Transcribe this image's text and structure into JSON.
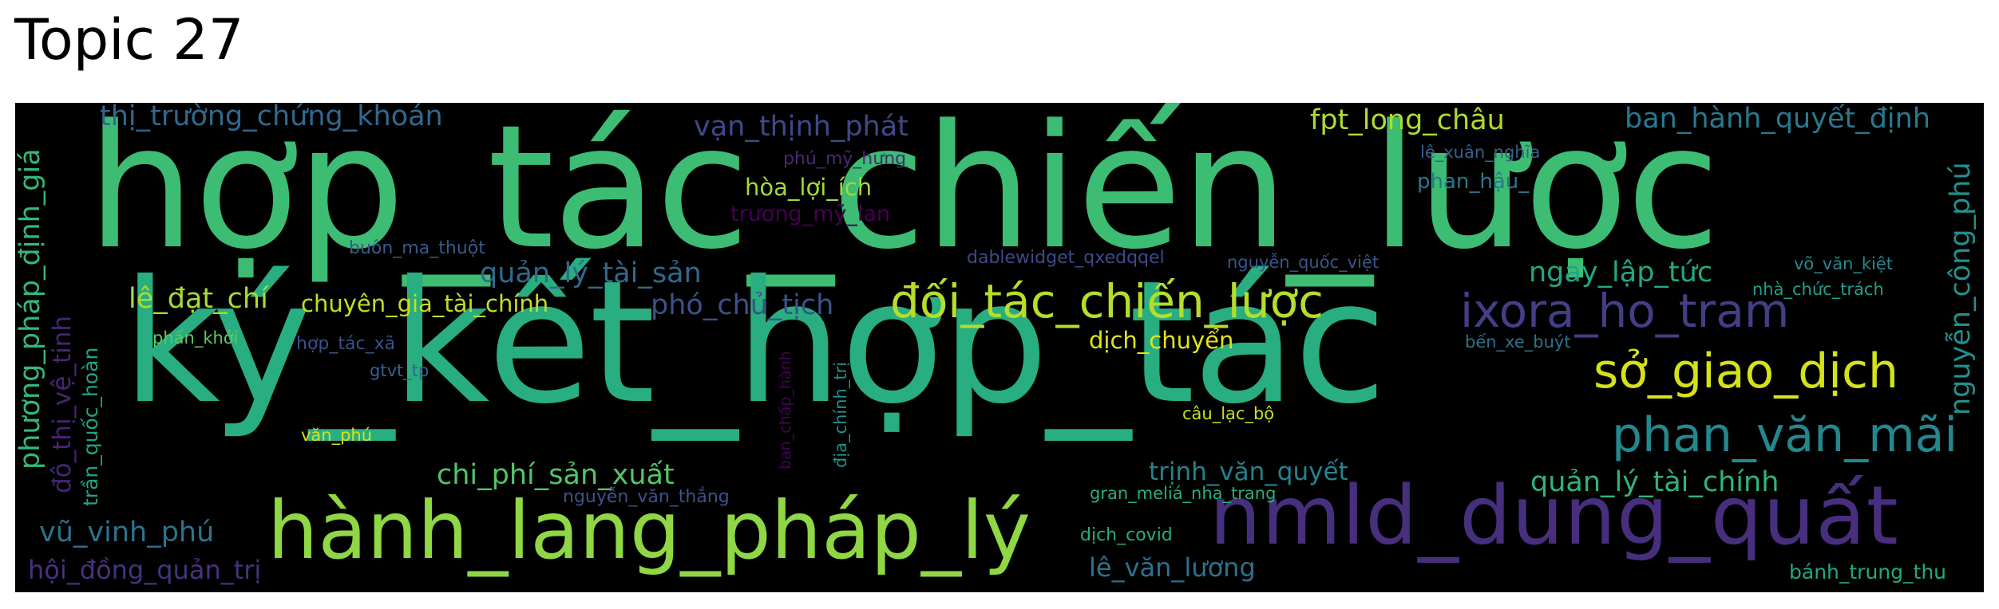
{
  "title": "Topic 27",
  "colors": {
    "background": "#000000",
    "page": "#ffffff",
    "title_text": "#000000"
  },
  "words": [
    {
      "text": "hợp_tác_chiến_lược",
      "color": "#3dbc73"
    },
    {
      "text": "ký_kết_hợp_tác",
      "color": "#28ae80"
    },
    {
      "text": "hành_lang_pháp_lý",
      "color": "#8fd744"
    },
    {
      "text": "nmld_dung_quất",
      "color": "#472f7d"
    },
    {
      "text": "đối_tác_chiến_lược",
      "color": "#b5de2b"
    },
    {
      "text": "ixora_ho_tram",
      "color": "#433e85"
    },
    {
      "text": "sở_giao_dịch",
      "color": "#d5e21a"
    },
    {
      "text": "phan_văn_mãi",
      "color": "#23888e"
    },
    {
      "text": "thị_trường_chứng_khoán",
      "color": "#31688e"
    },
    {
      "text": "vạn_thịnh_phát",
      "color": "#3e4989"
    },
    {
      "text": "fpt_long_châu",
      "color": "#addc30"
    },
    {
      "text": "ban_hành_quyết_định",
      "color": "#2a788e"
    },
    {
      "text": "phương_pháp_định_giá",
      "color": "#35b779"
    },
    {
      "text": "nguyễn_công_phú",
      "color": "#21918c"
    },
    {
      "text": "quản_lý_tài_sản",
      "color": "#31688e"
    },
    {
      "text": "lê_đạt_chí",
      "color": "#a8db34"
    },
    {
      "text": "chuyên_gia_tài_chính",
      "color": "#c2df23"
    },
    {
      "text": "phó_chủ_tịch",
      "color": "#3b528b"
    },
    {
      "text": "ngay_lập_tức",
      "color": "#22a785"
    },
    {
      "text": "chi_phí_sản_xuất",
      "color": "#52c569"
    },
    {
      "text": "vũ_vinh_phú",
      "color": "#2c728e"
    },
    {
      "text": "hội_đồng_quản_trị",
      "color": "#46327e"
    },
    {
      "text": "trịnh_văn_quyết",
      "color": "#26828e"
    },
    {
      "text": "quản_lý_tài_chính",
      "color": "#2fb47c"
    },
    {
      "text": "lê_văn_lương",
      "color": "#2d708e"
    },
    {
      "text": "đô_thị_vệ_tinh",
      "color": "#482475"
    },
    {
      "text": "trần_quốc_hoàn",
      "color": "#20a486"
    },
    {
      "text": "hòa_lợi_ích",
      "color": "#a2da37"
    },
    {
      "text": "trương_mỹ_lan",
      "color": "#440154"
    },
    {
      "text": "phú_mỹ_hưng",
      "color": "#482878"
    },
    {
      "text": "buôn_ma_thuột",
      "color": "#38598c"
    },
    {
      "text": "dablewidget_qxedqqel",
      "color": "#3e4a89"
    },
    {
      "text": "nguyễn_quốc_việt",
      "color": "#39558c"
    },
    {
      "text": "lê_xuân_nghĩa",
      "color": "#33638d"
    },
    {
      "text": "phan_hậu_",
      "color": "#2a778e"
    },
    {
      "text": "võ_văn_kiệt",
      "color": "#23898e"
    },
    {
      "text": "nhà_chức_trách",
      "color": "#1fa088"
    },
    {
      "text": "dịch_chuyển",
      "color": "#e2e418"
    },
    {
      "text": "bến_xe_buýt",
      "color": "#2c728e"
    },
    {
      "text": "phấn_khởi",
      "color": "#5ec962"
    },
    {
      "text": "hợp_tác_xã",
      "color": "#3b528b"
    },
    {
      "text": "gtvt_tp",
      "color": "#33638d"
    },
    {
      "text": "văn_phú",
      "color": "#d8e219"
    },
    {
      "text": "câu_lạc_bộ",
      "color": "#c8e020"
    },
    {
      "text": "gran_meliá_nha_trang",
      "color": "#29af7f"
    },
    {
      "text": "nguyễn_văn_thắng",
      "color": "#3b528b"
    },
    {
      "text": "dịch_covid",
      "color": "#27ad81"
    },
    {
      "text": "bánh_trung_thu",
      "color": "#22a884"
    },
    {
      "text": "ban_chấp_hành",
      "color": "#450457"
    },
    {
      "text": "địa_chính_trị",
      "color": "#20928c"
    }
  ]
}
